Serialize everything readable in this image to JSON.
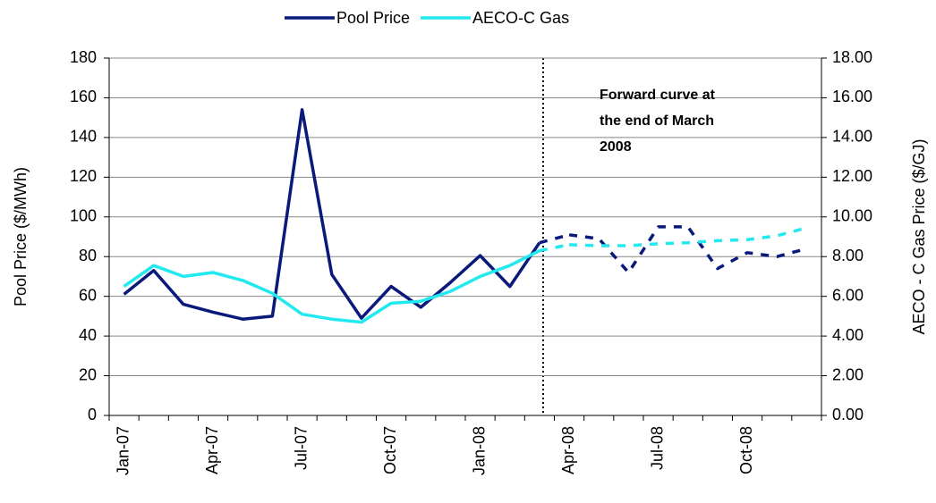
{
  "chart_data": {
    "type": "line",
    "categories": [
      "Jan-07",
      null,
      null,
      "Apr-07",
      null,
      null,
      "Jul-07",
      null,
      null,
      "Oct-07",
      null,
      null,
      "Jan-08",
      null,
      null,
      "Apr-08",
      null,
      null,
      "Jul-08",
      null,
      null,
      "Oct-08",
      null,
      null
    ],
    "series": [
      {
        "name": "Pool Price",
        "color": "#0a1a7a",
        "values": [
          61,
          73,
          56,
          52,
          48.5,
          50,
          154,
          71,
          49,
          65,
          54.5,
          67,
          80.5,
          65,
          87,
          null,
          null,
          null,
          null,
          null,
          null,
          null,
          null,
          null
        ],
        "forecast_values": [
          null,
          null,
          null,
          null,
          null,
          null,
          null,
          null,
          null,
          null,
          null,
          null,
          null,
          null,
          null,
          91,
          89,
          72,
          95,
          95,
          74,
          82,
          80,
          84
        ]
      },
      {
        "name": "AECO-C Gas",
        "color": "#22e8f0",
        "axis": "y2",
        "values": [
          6.5,
          7.55,
          7.0,
          7.2,
          6.8,
          6.15,
          5.1,
          4.85,
          4.7,
          5.65,
          5.75,
          6.25,
          7.0,
          7.55,
          8.3,
          null,
          null,
          null,
          null,
          null,
          null,
          null,
          null,
          null
        ],
        "forecast_values": [
          null,
          null,
          null,
          null,
          null,
          null,
          null,
          null,
          null,
          null,
          null,
          null,
          null,
          null,
          null,
          8.6,
          8.55,
          8.55,
          8.65,
          8.7,
          8.8,
          8.85,
          9.05,
          9.45
        ]
      }
    ],
    "y_label": "Pool Price ($/MWh)",
    "y2_label": "AECO - C Gas Price ($/GJ)",
    "ylim": [
      0,
      180
    ],
    "yticks": [
      0,
      20,
      40,
      60,
      80,
      100,
      120,
      140,
      160,
      180
    ],
    "y2lim": [
      0,
      18
    ],
    "y2ticks": [
      {
        "value": 0,
        "label": "0.00"
      },
      {
        "value": 2,
        "label": "2.00"
      },
      {
        "value": 4,
        "label": "4.00"
      },
      {
        "value": 6,
        "label": "6.00"
      },
      {
        "value": 8,
        "label": "8.00"
      },
      {
        "value": 10,
        "label": "10.00"
      },
      {
        "value": 12,
        "label": "12.00"
      },
      {
        "value": 14,
        "label": "14.00"
      },
      {
        "value": 16,
        "label": "16.00"
      },
      {
        "value": 18,
        "label": "18.00"
      }
    ],
    "annotation": [
      "Forward curve at",
      "the end of March",
      "2008"
    ],
    "grid": true,
    "legend": "top"
  }
}
